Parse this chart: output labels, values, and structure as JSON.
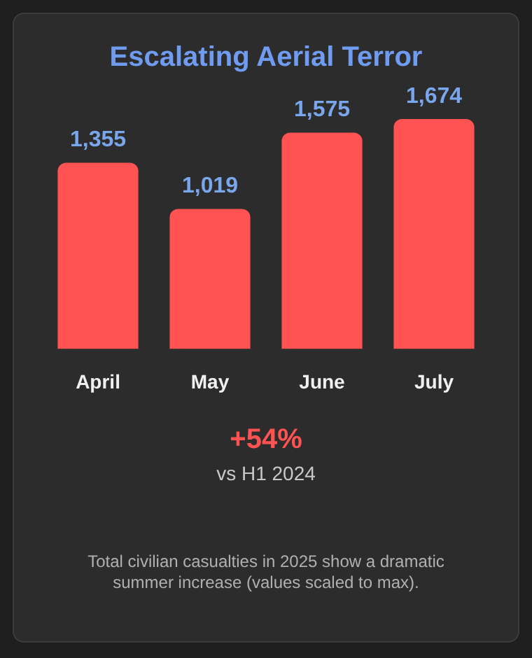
{
  "chart_data": {
    "type": "bar",
    "title": "Escalating Aerial Terror",
    "categories": [
      "April",
      "May",
      "June",
      "July"
    ],
    "values": [
      1355,
      1019,
      1575,
      1674
    ],
    "color": "#ff5252",
    "value_labels": [
      "1,355",
      "1,019",
      "1,575",
      "1,674"
    ],
    "grid": false,
    "legend": false,
    "tick_labels": "x",
    "annotations": [
      "+54%",
      "vs H1 2024",
      "Total civilian casualties in 2025 show a dramatic summer increase (values scaled to max)."
    ]
  }
}
